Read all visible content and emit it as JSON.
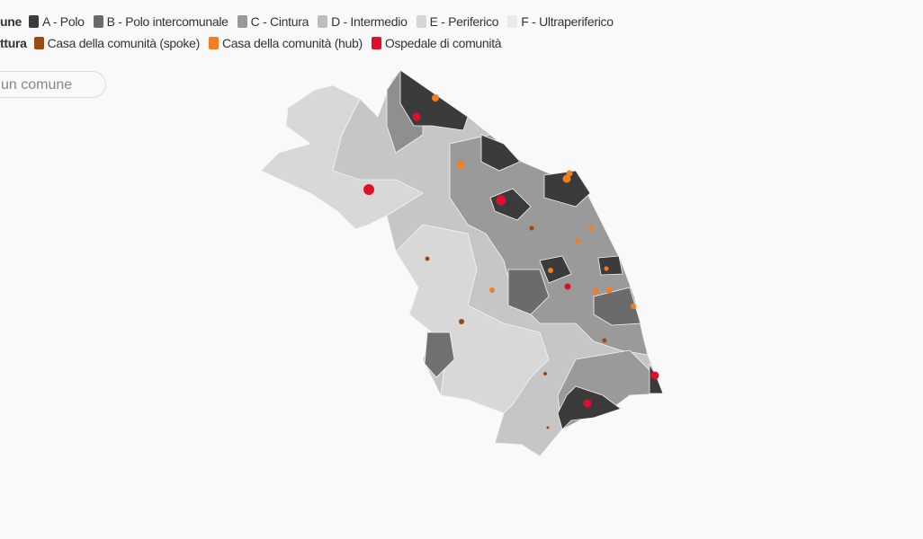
{
  "legend": {
    "groups": [
      {
        "title": "une",
        "items": [
          {
            "label": "A - Polo",
            "color": "#3b3b3b"
          },
          {
            "label": "B - Polo intercomunale",
            "color": "#6b6b6b"
          },
          {
            "label": "C - Cintura",
            "color": "#999999"
          },
          {
            "label": "D - Intermedio",
            "color": "#bdbdbd"
          },
          {
            "label": "E - Periferico",
            "color": "#d6d6d6"
          },
          {
            "label": "F - Ultraperiferico",
            "color": "#ebebeb"
          }
        ]
      },
      {
        "title": "ttura",
        "items": [
          {
            "label": "Casa della comunità (spoke)",
            "color": "#9a4a14"
          },
          {
            "label": "Casa della comunità (hub)",
            "color": "#f07f23"
          },
          {
            "label": "Ospedale di comunità",
            "color": "#e0102a"
          }
        ]
      }
    ]
  },
  "search": {
    "placeholder": "un comune"
  }
}
